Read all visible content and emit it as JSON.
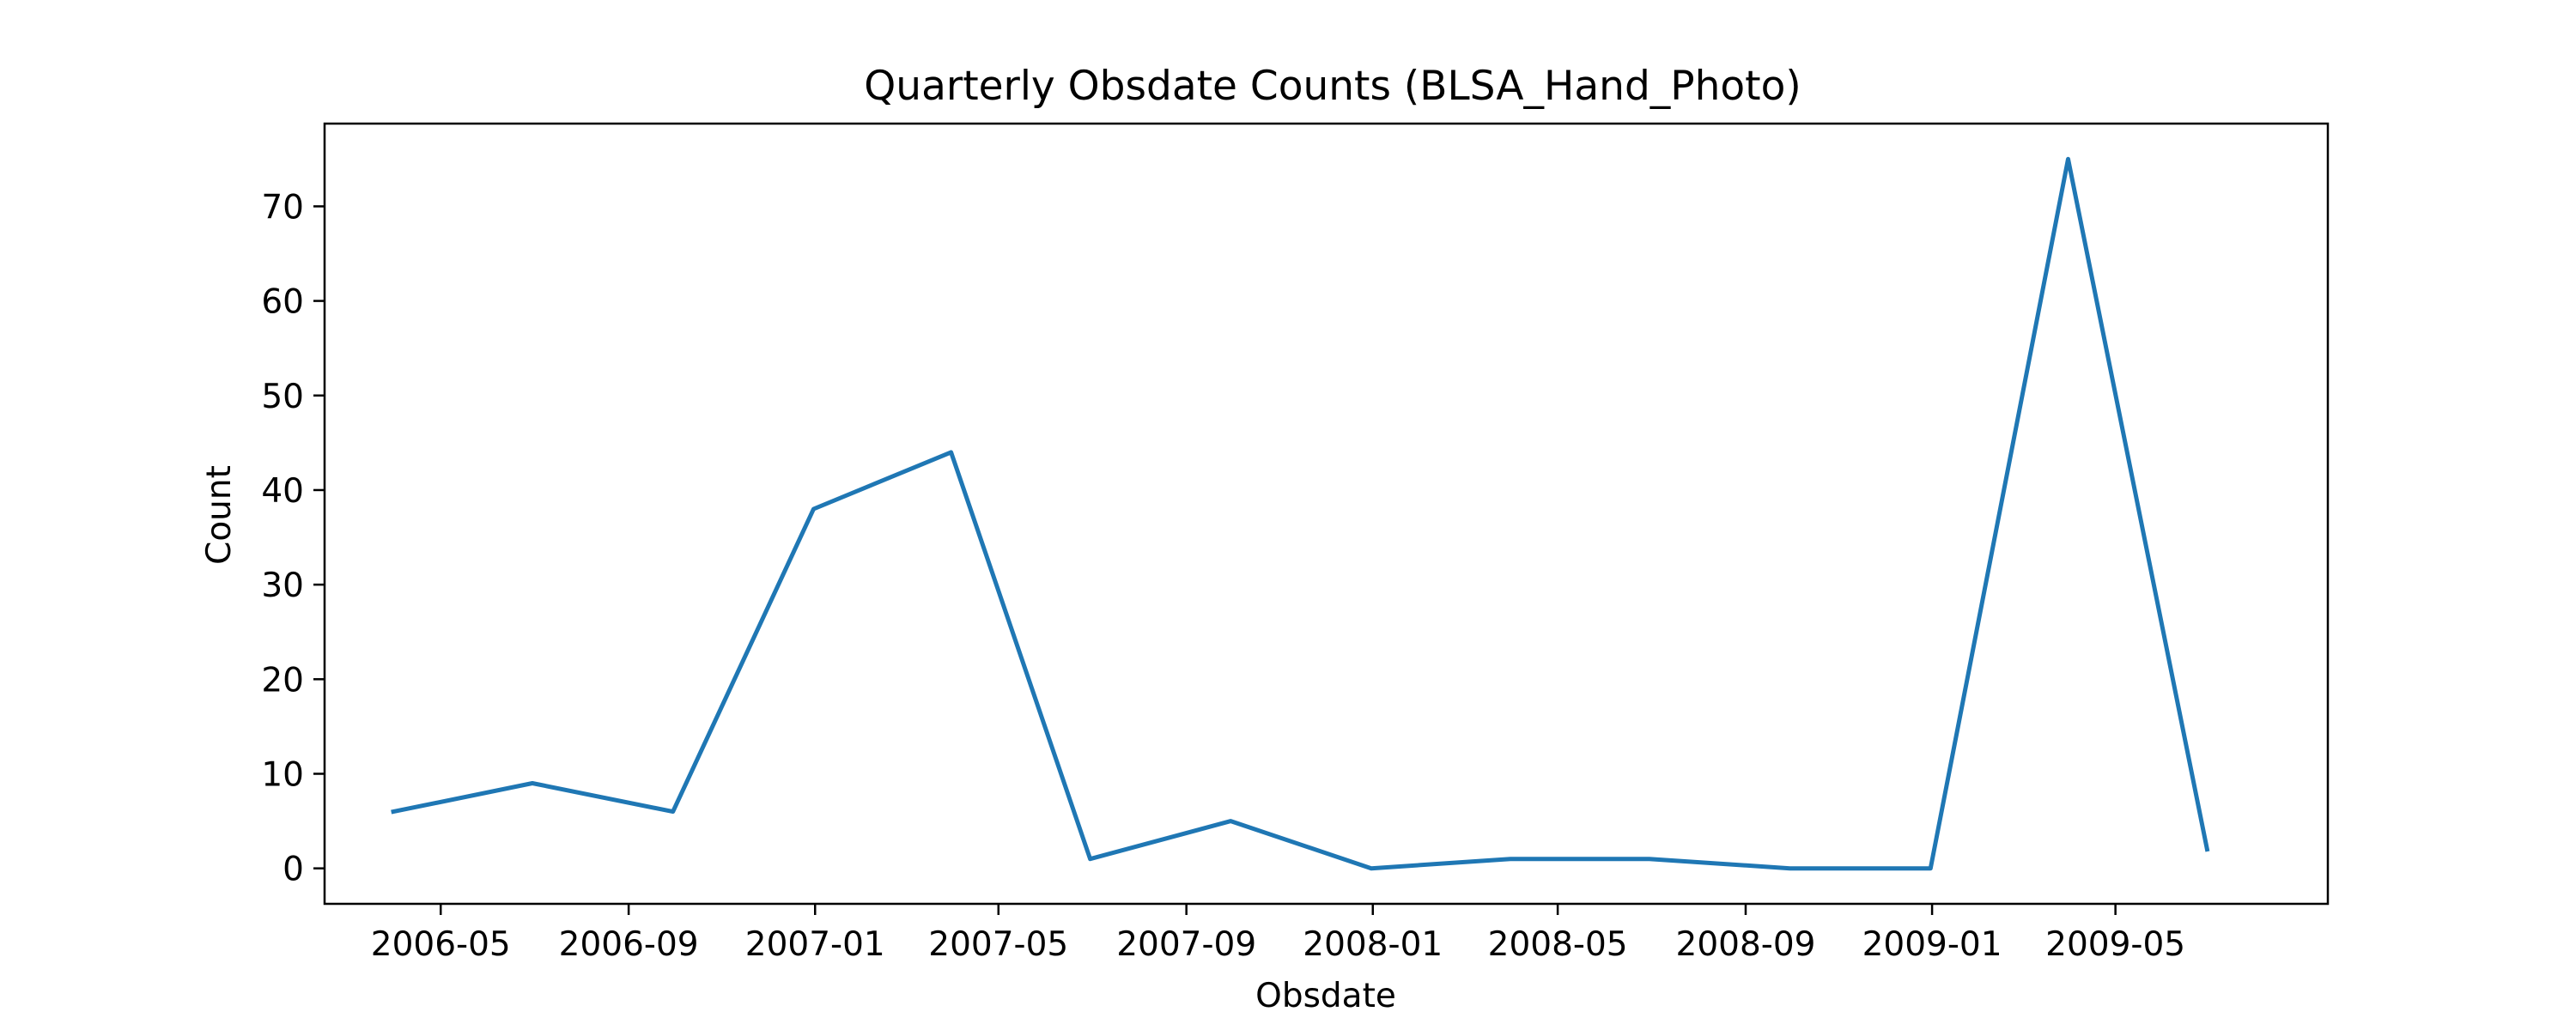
{
  "chart_data": {
    "type": "line",
    "title": "Quarterly Obsdate Counts (BLSA_Hand_Photo)",
    "xlabel": "Obsdate",
    "ylabel": "Count",
    "x_scale": "date",
    "xlim": [
      "2006-02-14",
      "2009-09-17"
    ],
    "ylim": [
      -3.75,
      78.75
    ],
    "x_ticks": [
      "2006-05",
      "2006-09",
      "2007-01",
      "2007-05",
      "2007-09",
      "2008-01",
      "2008-05",
      "2008-09",
      "2009-01",
      "2009-05"
    ],
    "y_ticks": [
      0,
      10,
      20,
      30,
      40,
      50,
      60,
      70
    ],
    "grid": false,
    "legend": "none",
    "series": [
      {
        "color": "#1f77b4",
        "x": [
          "2006-03-31",
          "2006-06-30",
          "2006-09-30",
          "2006-12-31",
          "2007-03-31",
          "2007-06-30",
          "2007-09-30",
          "2007-12-31",
          "2008-03-31",
          "2008-06-30",
          "2008-09-30",
          "2008-12-31",
          "2009-03-31",
          "2009-06-30"
        ],
        "values": [
          6,
          9,
          6,
          38,
          44,
          1,
          5,
          0,
          1,
          1,
          0,
          0,
          75,
          2
        ]
      }
    ]
  }
}
